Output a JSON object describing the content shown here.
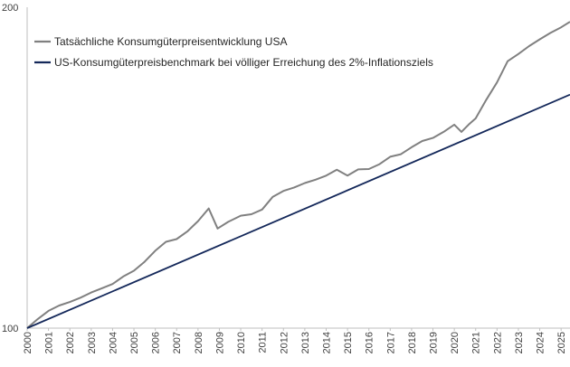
{
  "chart_data": {
    "type": "line",
    "title": "",
    "xlabel": "",
    "ylabel": "",
    "scale": "log",
    "ylim": [
      100,
      200
    ],
    "y_ticks": [
      "100",
      "200"
    ],
    "x_ticks": [
      "2000",
      "2001",
      "2002",
      "2003",
      "2004",
      "2005",
      "2006",
      "2007",
      "2008",
      "2009",
      "2010",
      "2011",
      "2012",
      "2013",
      "2014",
      "2015",
      "2016",
      "2017",
      "2018",
      "2019",
      "2020",
      "2021",
      "2022",
      "2023",
      "2024",
      "2025"
    ],
    "xlim": [
      "2000-01",
      "2025-06"
    ],
    "grid": false,
    "legend_position": "top-left",
    "series": [
      {
        "name": "Tatsächliche Konsumgüterpreisentwicklung USA",
        "color": "#808080",
        "points": [
          [
            "2000-01",
            100.0
          ],
          [
            "2000-07",
            102.0
          ],
          [
            "2001-01",
            103.8
          ],
          [
            "2001-07",
            105.0
          ],
          [
            "2002-01",
            105.8
          ],
          [
            "2002-07",
            106.8
          ],
          [
            "2003-01",
            108.0
          ],
          [
            "2003-07",
            109.0
          ],
          [
            "2004-01",
            110.0
          ],
          [
            "2004-07",
            111.8
          ],
          [
            "2005-01",
            113.2
          ],
          [
            "2005-07",
            115.4
          ],
          [
            "2006-01",
            118.2
          ],
          [
            "2006-07",
            120.5
          ],
          [
            "2007-01",
            121.2
          ],
          [
            "2007-07",
            123.2
          ],
          [
            "2008-01",
            126.0
          ],
          [
            "2008-07",
            129.5
          ],
          [
            "2008-12",
            124.0
          ],
          [
            "2009-06",
            125.8
          ],
          [
            "2010-01",
            127.5
          ],
          [
            "2010-07",
            127.9
          ],
          [
            "2011-01",
            129.2
          ],
          [
            "2011-07",
            132.8
          ],
          [
            "2012-01",
            134.5
          ],
          [
            "2012-07",
            135.5
          ],
          [
            "2013-01",
            136.8
          ],
          [
            "2013-07",
            137.8
          ],
          [
            "2014-01",
            139.0
          ],
          [
            "2014-07",
            140.8
          ],
          [
            "2015-01",
            139.0
          ],
          [
            "2015-07",
            140.9
          ],
          [
            "2016-01",
            141.0
          ],
          [
            "2016-07",
            142.5
          ],
          [
            "2017-01",
            144.8
          ],
          [
            "2017-07",
            145.6
          ],
          [
            "2018-01",
            147.8
          ],
          [
            "2018-07",
            149.8
          ],
          [
            "2019-01",
            150.8
          ],
          [
            "2019-07",
            152.8
          ],
          [
            "2020-01",
            155.2
          ],
          [
            "2020-05",
            152.8
          ],
          [
            "2020-09",
            155.2
          ],
          [
            "2021-01",
            157.3
          ],
          [
            "2021-07",
            163.8
          ],
          [
            "2022-01",
            170.0
          ],
          [
            "2022-07",
            178.0
          ],
          [
            "2023-01",
            180.8
          ],
          [
            "2023-07",
            183.9
          ],
          [
            "2024-01",
            186.6
          ],
          [
            "2024-07",
            189.2
          ],
          [
            "2025-01",
            191.5
          ],
          [
            "2025-06",
            193.8
          ]
        ]
      },
      {
        "name": "US-Konsumgüterpreisbenchmark bei völliger Erreichung des 2%-Inflationsziels",
        "color": "#14285a",
        "points": [
          [
            "2000-01",
            100.0
          ],
          [
            "2025-06",
            165.6
          ]
        ]
      }
    ]
  }
}
